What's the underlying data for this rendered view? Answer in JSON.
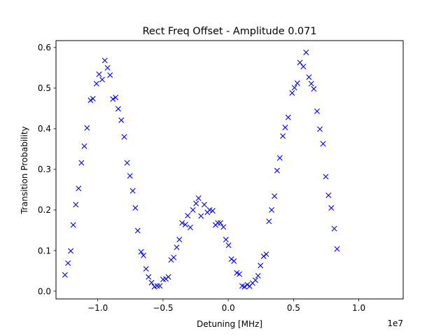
{
  "chart_data": {
    "type": "scatter",
    "title": "Rect Freq Offset - Amplitude 0.071",
    "xlabel": "Detuning [MHz]",
    "ylabel": "Transition Probability",
    "x_offset_text": "1e7",
    "xlim": [
      -1.32,
      1.34
    ],
    "ylim": [
      -0.019,
      0.617
    ],
    "xticks": [
      -1.0,
      -0.5,
      0.0,
      0.5,
      1.0
    ],
    "xtick_labels": [
      "−1.0",
      "−0.5",
      "0.0",
      "0.5",
      "1.0"
    ],
    "yticks": [
      0.0,
      0.1,
      0.2,
      0.3,
      0.4,
      0.5,
      0.6
    ],
    "ytick_labels": [
      "0.0",
      "0.1",
      "0.2",
      "0.3",
      "0.4",
      "0.5",
      "0.6"
    ],
    "marker": "x",
    "marker_color": "#0000ff",
    "grid": false,
    "legend": "none",
    "series": [
      {
        "points": [
          [
            -1.251,
            0.04
          ],
          [
            -1.228,
            0.069
          ],
          [
            -1.207,
            0.099
          ],
          [
            -1.188,
            0.163
          ],
          [
            -1.168,
            0.213
          ],
          [
            -1.147,
            0.253
          ],
          [
            -1.125,
            0.316
          ],
          [
            -1.103,
            0.357
          ],
          [
            -1.082,
            0.402
          ],
          [
            -1.055,
            0.47
          ],
          [
            -1.037,
            0.474
          ],
          [
            -1.01,
            0.511
          ],
          [
            -0.99,
            0.534
          ],
          [
            -0.966,
            0.521
          ],
          [
            -0.946,
            0.568
          ],
          [
            -0.925,
            0.55
          ],
          [
            -0.906,
            0.532
          ],
          [
            -0.884,
            0.473
          ],
          [
            -0.863,
            0.477
          ],
          [
            -0.843,
            0.449
          ],
          [
            -0.82,
            0.421
          ],
          [
            -0.797,
            0.38
          ],
          [
            -0.775,
            0.316
          ],
          [
            -0.753,
            0.284
          ],
          [
            -0.732,
            0.247
          ],
          [
            -0.712,
            0.205
          ],
          [
            -0.694,
            0.149
          ],
          [
            -0.668,
            0.097
          ],
          [
            -0.65,
            0.088
          ],
          [
            -0.63,
            0.055
          ],
          [
            -0.611,
            0.035
          ],
          [
            -0.588,
            0.021
          ],
          [
            -0.566,
            0.011
          ],
          [
            -0.544,
            0.013
          ],
          [
            -0.524,
            0.013
          ],
          [
            -0.5,
            0.029
          ],
          [
            -0.478,
            0.03
          ],
          [
            -0.459,
            0.035
          ],
          [
            -0.438,
            0.077
          ],
          [
            -0.418,
            0.083
          ],
          [
            -0.395,
            0.108
          ],
          [
            -0.375,
            0.127
          ],
          [
            -0.354,
            0.168
          ],
          [
            -0.329,
            0.164
          ],
          [
            -0.311,
            0.186
          ],
          [
            -0.291,
            0.157
          ],
          [
            -0.271,
            0.2
          ],
          [
            -0.247,
            0.216
          ],
          [
            -0.228,
            0.229
          ],
          [
            -0.209,
            0.185
          ],
          [
            -0.184,
            0.213
          ],
          [
            -0.16,
            0.194
          ],
          [
            -0.143,
            0.2
          ],
          [
            -0.12,
            0.198
          ],
          [
            -0.098,
            0.163
          ],
          [
            -0.08,
            0.168
          ],
          [
            -0.06,
            0.168
          ],
          [
            -0.037,
            0.158
          ],
          [
            -0.018,
            0.127
          ],
          [
            0.002,
            0.113
          ],
          [
            0.024,
            0.079
          ],
          [
            0.043,
            0.074
          ],
          [
            0.065,
            0.045
          ],
          [
            0.085,
            0.042
          ],
          [
            0.106,
            0.013
          ],
          [
            0.124,
            0.011
          ],
          [
            0.146,
            0.016
          ],
          [
            0.164,
            0.012
          ],
          [
            0.186,
            0.02
          ],
          [
            0.208,
            0.027
          ],
          [
            0.228,
            0.038
          ],
          [
            0.247,
            0.063
          ],
          [
            0.271,
            0.086
          ],
          [
            0.291,
            0.091
          ],
          [
            0.312,
            0.172
          ],
          [
            0.332,
            0.2
          ],
          [
            0.354,
            0.234
          ],
          [
            0.374,
            0.297
          ],
          [
            0.395,
            0.328
          ],
          [
            0.418,
            0.382
          ],
          [
            0.436,
            0.403
          ],
          [
            0.459,
            0.428
          ],
          [
            0.489,
            0.488
          ],
          [
            0.507,
            0.501
          ],
          [
            0.529,
            0.512
          ],
          [
            0.549,
            0.563
          ],
          [
            0.575,
            0.553
          ],
          [
            0.596,
            0.588
          ],
          [
            0.618,
            0.527
          ],
          [
            0.636,
            0.511
          ],
          [
            0.655,
            0.498
          ],
          [
            0.68,
            0.443
          ],
          [
            0.702,
            0.399
          ],
          [
            0.726,
            0.363
          ],
          [
            0.747,
            0.282
          ],
          [
            0.768,
            0.236
          ],
          [
            0.789,
            0.205
          ],
          [
            0.812,
            0.154
          ],
          [
            0.833,
            0.104
          ]
        ]
      }
    ]
  }
}
